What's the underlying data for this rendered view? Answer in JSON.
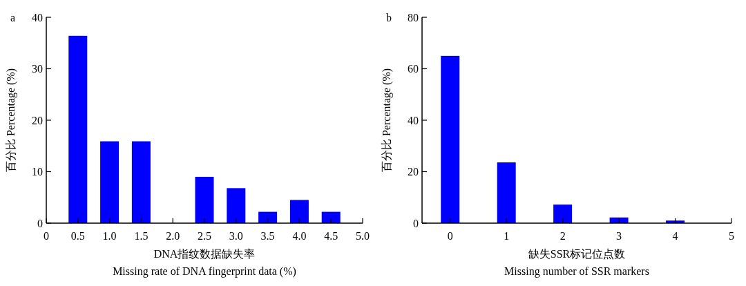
{
  "chart_data": [
    {
      "type": "bar",
      "title": "a",
      "xlabel": "DNA指纹数据缺失率\nMissing rate of DNA fingerprint data (%)",
      "ylabel": "百分比 Percentage (%)",
      "x": [
        0.5,
        1.0,
        1.5,
        2.0,
        2.5,
        3.0,
        3.5,
        4.0,
        4.5
      ],
      "values": [
        36.4,
        15.9,
        15.9,
        0,
        9.0,
        6.8,
        2.2,
        4.5,
        2.2
      ],
      "color": "#0000ff",
      "xlim": [
        0,
        5.0
      ],
      "xticks": [
        0,
        0.5,
        {
          "value": 1,
          "label": "1.0"
        },
        1.5,
        {
          "value": 2,
          "label": "2.0"
        },
        2.5,
        {
          "value": 3,
          "label": "3.0"
        },
        3.5,
        {
          "value": 4,
          "label": "4.0"
        },
        4.5,
        {
          "value": 5,
          "label": "5.0"
        }
      ],
      "ylim": [
        0,
        40
      ],
      "yticks": [
        0,
        10,
        20,
        30,
        40
      ]
    },
    {
      "type": "bar",
      "title": "b",
      "xlabel": "缺失SSR标记位点数\nMissing number of SSR markers",
      "ylabel": "百分比 Percentage (%)",
      "x": [
        0,
        1,
        2,
        3,
        4
      ],
      "values": [
        65.0,
        23.6,
        7.2,
        2.2,
        1.0
      ],
      "color": "#0000ff",
      "xlim": [
        -0.5,
        5
      ],
      "xticks": [
        0,
        1,
        2,
        3,
        4,
        5
      ],
      "ylim": [
        0,
        80
      ],
      "yticks": [
        0,
        20,
        40,
        60,
        80
      ]
    }
  ]
}
